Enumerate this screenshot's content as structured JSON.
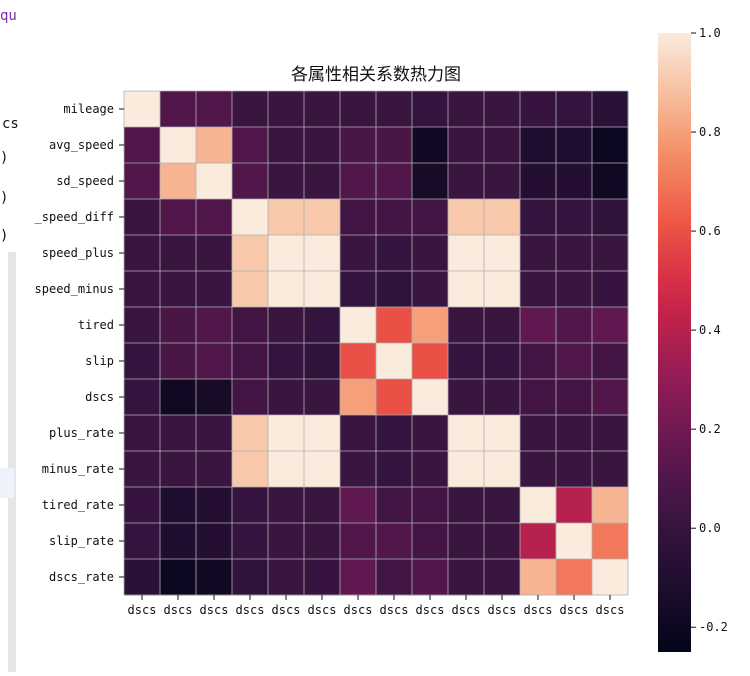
{
  "notebook": {
    "fragments": [
      "qu",
      "cs",
      ")",
      ")",
      ")"
    ]
  },
  "chart_data": {
    "type": "heatmap",
    "title": "各属性相关系数热力图",
    "row_labels": [
      "mileage",
      "avg_speed",
      "sd_speed",
      "_speed_diff",
      "speed_plus",
      "speed_minus",
      "tired",
      "slip",
      "dscs",
      "plus_rate",
      "minus_rate",
      "tired_rate",
      "slip_rate",
      "dscs_rate"
    ],
    "col_labels": [
      "dscs",
      "dscs",
      "dscs",
      "dscs",
      "dscs",
      "dscs",
      "dscs",
      "dscs",
      "dscs",
      "dscs",
      "dscs",
      "dscs",
      "dscs",
      "dscs"
    ],
    "values": [
      [
        1.0,
        0.1,
        0.1,
        0.02,
        0.02,
        0.02,
        0.02,
        0.02,
        0.0,
        0.02,
        0.02,
        0.01,
        0.0,
        -0.05
      ],
      [
        0.1,
        1.0,
        0.85,
        0.1,
        0.02,
        0.02,
        0.07,
        0.07,
        -0.18,
        0.02,
        0.02,
        -0.1,
        -0.1,
        -0.2
      ],
      [
        0.1,
        0.85,
        1.0,
        0.1,
        0.02,
        0.02,
        0.1,
        0.1,
        -0.15,
        0.02,
        0.02,
        -0.08,
        -0.08,
        -0.18
      ],
      [
        0.02,
        0.1,
        0.1,
        1.0,
        0.9,
        0.9,
        0.05,
        0.05,
        0.05,
        0.9,
        0.9,
        0.0,
        0.0,
        -0.02
      ],
      [
        0.02,
        0.02,
        0.02,
        0.9,
        1.0,
        1.0,
        0.02,
        0.0,
        0.02,
        1.0,
        1.0,
        0.02,
        0.02,
        0.02
      ],
      [
        0.02,
        0.02,
        0.02,
        0.9,
        1.0,
        1.0,
        0.0,
        -0.02,
        0.02,
        1.0,
        1.0,
        0.02,
        0.02,
        0.01
      ],
      [
        0.02,
        0.07,
        0.1,
        0.05,
        0.02,
        0.0,
        1.0,
        0.6,
        0.8,
        0.02,
        0.02,
        0.15,
        0.1,
        0.15
      ],
      [
        0.0,
        0.07,
        0.1,
        0.05,
        0.0,
        -0.02,
        0.6,
        1.0,
        0.6,
        0.0,
        0.0,
        0.05,
        0.1,
        0.05
      ],
      [
        0.0,
        -0.18,
        -0.15,
        0.05,
        0.02,
        0.02,
        0.8,
        0.6,
        1.0,
        0.02,
        0.02,
        0.05,
        0.05,
        0.1
      ],
      [
        0.02,
        0.02,
        0.02,
        0.9,
        1.0,
        1.0,
        0.02,
        0.0,
        0.02,
        1.0,
        1.0,
        0.02,
        0.02,
        0.02
      ],
      [
        0.02,
        0.02,
        0.02,
        0.9,
        1.0,
        1.0,
        0.02,
        0.0,
        0.02,
        1.0,
        1.0,
        0.02,
        0.02,
        0.02
      ],
      [
        0.01,
        -0.1,
        -0.08,
        0.0,
        0.02,
        0.02,
        0.15,
        0.05,
        0.05,
        0.02,
        0.02,
        1.0,
        0.4,
        0.85
      ],
      [
        0.0,
        -0.1,
        -0.08,
        0.0,
        0.02,
        0.02,
        0.1,
        0.1,
        0.05,
        0.02,
        0.02,
        0.4,
        1.0,
        0.7
      ],
      [
        -0.05,
        -0.2,
        -0.18,
        -0.02,
        0.02,
        0.01,
        0.15,
        0.05,
        0.1,
        0.02,
        0.02,
        0.85,
        0.7,
        1.0
      ]
    ],
    "vmin": -0.25,
    "vmax": 1.0,
    "colorbar_ticks": [
      1.0,
      0.8,
      0.6,
      0.4,
      0.2,
      0.0,
      -0.2
    ],
    "colorbar_tick_labels": [
      "1.0",
      "0.8",
      "0.6",
      "0.4",
      "0.2",
      "0.0",
      "-0.2"
    ],
    "colormap": "rocket",
    "grid": true
  }
}
